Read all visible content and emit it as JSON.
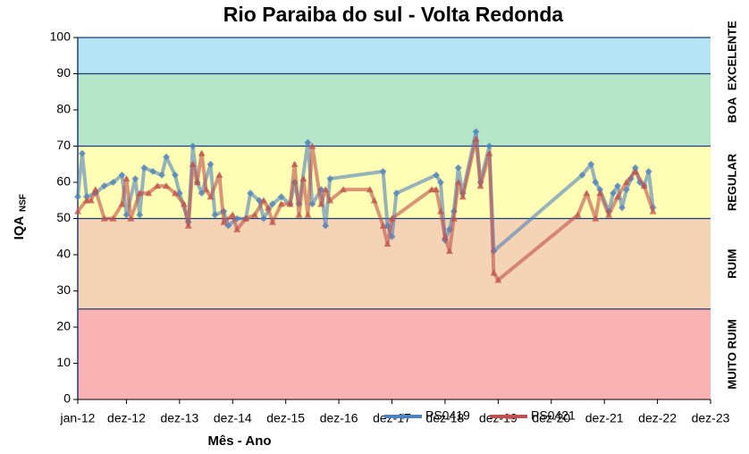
{
  "chart_data": {
    "type": "line",
    "title": "Rio Paraiba do sul - Volta Redonda",
    "x_label": "Mês - Ano",
    "y_label": "IQA",
    "y_label_sub": "NSF",
    "xlim": [
      "2012-01",
      "2023-12"
    ],
    "xticks": [
      {
        "value": "2012-01",
        "label": "jan-12"
      },
      {
        "value": "2012-12",
        "label": "dez-12"
      },
      {
        "value": "2013-12",
        "label": "dez-13"
      },
      {
        "value": "2014-12",
        "label": "dez-14"
      },
      {
        "value": "2015-12",
        "label": "dez-15"
      },
      {
        "value": "2016-12",
        "label": "dez-16"
      },
      {
        "value": "2017-12",
        "label": "dez-17"
      },
      {
        "value": "2018-12",
        "label": "dez-18"
      },
      {
        "value": "2019-12",
        "label": "dez-19"
      },
      {
        "value": "2020-12",
        "label": "dez-20"
      },
      {
        "value": "2021-12",
        "label": "dez-21"
      },
      {
        "value": "2022-12",
        "label": "dez-22"
      },
      {
        "value": "2023-12",
        "label": "dez-23"
      }
    ],
    "ylim": [
      0,
      100
    ],
    "yticks": [
      0,
      10,
      20,
      30,
      40,
      50,
      60,
      70,
      80,
      90,
      100
    ],
    "bands": [
      {
        "label": "MUITO RUIM",
        "from": 0,
        "to": 25,
        "color": "#f9b1b1"
      },
      {
        "label": "RUIM",
        "from": 25,
        "to": 50,
        "color": "#f4d4b4"
      },
      {
        "label": "REGULAR",
        "from": 50,
        "to": 70,
        "color": "#ffffb5"
      },
      {
        "label": "BOA",
        "from": 70,
        "to": 90,
        "color": "#b5e6c8"
      },
      {
        "label": "EXCELENTE",
        "from": 90,
        "to": 100,
        "color": "#b5e4f5"
      }
    ],
    "legend": "bottom",
    "series": [
      {
        "name": "PS0419",
        "color": "#4f81bd",
        "marker": "diamond",
        "x": [
          "2012-01",
          "2012-02",
          "2012-03",
          "2012-05",
          "2012-07",
          "2012-09",
          "2012-11",
          "2012-12",
          "2013-02",
          "2013-03",
          "2013-04",
          "2013-06",
          "2013-08",
          "2013-09",
          "2013-11",
          "2013-12",
          "2014-02",
          "2014-03",
          "2014-04",
          "2014-05",
          "2014-07",
          "2014-08",
          "2014-10",
          "2014-11",
          "2015-01",
          "2015-03",
          "2015-04",
          "2015-06",
          "2015-07",
          "2015-09",
          "2015-11",
          "2016-01",
          "2016-02",
          "2016-03",
          "2016-05",
          "2016-06",
          "2016-08",
          "2016-09",
          "2016-10",
          "2017-10",
          "2017-11",
          "2017-12",
          "2018-01",
          "2018-10",
          "2018-11",
          "2018-12",
          "2019-01",
          "2019-02",
          "2019-03",
          "2019-04",
          "2019-07",
          "2019-08",
          "2019-10",
          "2019-11",
          "2021-07",
          "2021-09",
          "2021-10",
          "2021-11",
          "2022-01",
          "2022-02",
          "2022-03",
          "2022-04",
          "2022-05",
          "2022-06",
          "2022-07",
          "2022-08",
          "2022-09",
          "2022-10",
          "2022-11"
        ],
        "values": [
          56,
          68,
          56,
          57,
          59,
          60,
          62,
          51,
          61,
          51,
          64,
          63,
          62,
          67,
          62,
          57,
          49,
          70,
          60,
          57,
          65,
          51,
          52,
          48,
          50,
          50,
          57,
          55,
          50,
          54,
          56,
          54,
          60,
          54,
          71,
          54,
          58,
          48,
          61,
          63,
          48,
          45,
          57,
          62,
          60,
          44,
          47,
          52,
          64,
          57,
          74,
          60,
          70,
          41,
          62,
          65,
          60,
          58,
          52,
          57,
          59,
          53,
          58,
          61,
          64,
          60,
          59,
          63,
          53
        ]
      },
      {
        "name": "PS0421",
        "color": "#c0504d",
        "marker": "triangle",
        "x": [
          "2012-01",
          "2012-03",
          "2012-04",
          "2012-05",
          "2012-07",
          "2012-09",
          "2012-11",
          "2012-12",
          "2013-01",
          "2013-03",
          "2013-05",
          "2013-07",
          "2013-09",
          "2013-11",
          "2014-01",
          "2014-02",
          "2014-03",
          "2014-04",
          "2014-05",
          "2014-06",
          "2014-07",
          "2014-09",
          "2014-10",
          "2014-12",
          "2015-01",
          "2015-03",
          "2015-05",
          "2015-07",
          "2015-08",
          "2015-09",
          "2015-11",
          "2016-01",
          "2016-02",
          "2016-03",
          "2016-04",
          "2016-05",
          "2016-06",
          "2016-08",
          "2016-09",
          "2016-10",
          "2017-01",
          "2017-07",
          "2017-08",
          "2017-10",
          "2017-11",
          "2017-12",
          "2018-09",
          "2018-10",
          "2018-11",
          "2018-12",
          "2019-01",
          "2019-02",
          "2019-03",
          "2019-04",
          "2019-07",
          "2019-08",
          "2019-10",
          "2019-11",
          "2019-12",
          "2021-06",
          "2021-08",
          "2021-10",
          "2021-11",
          "2022-01",
          "2022-03",
          "2022-05",
          "2022-07",
          "2022-09",
          "2022-11"
        ],
        "values": [
          52,
          55,
          55,
          58,
          50,
          50,
          54,
          61,
          50,
          57,
          57,
          59,
          59,
          57,
          54,
          48,
          65,
          60,
          68,
          58,
          56,
          62,
          49,
          51,
          47,
          50,
          51,
          55,
          53,
          49,
          54,
          54,
          65,
          51,
          61,
          51,
          70,
          54,
          58,
          55,
          58,
          58,
          55,
          48,
          43,
          50,
          58,
          58,
          52,
          45,
          41,
          50,
          60,
          56,
          72,
          59,
          68,
          35,
          33,
          51,
          57,
          50,
          57,
          51,
          56,
          60,
          63,
          59,
          52
        ]
      }
    ]
  }
}
